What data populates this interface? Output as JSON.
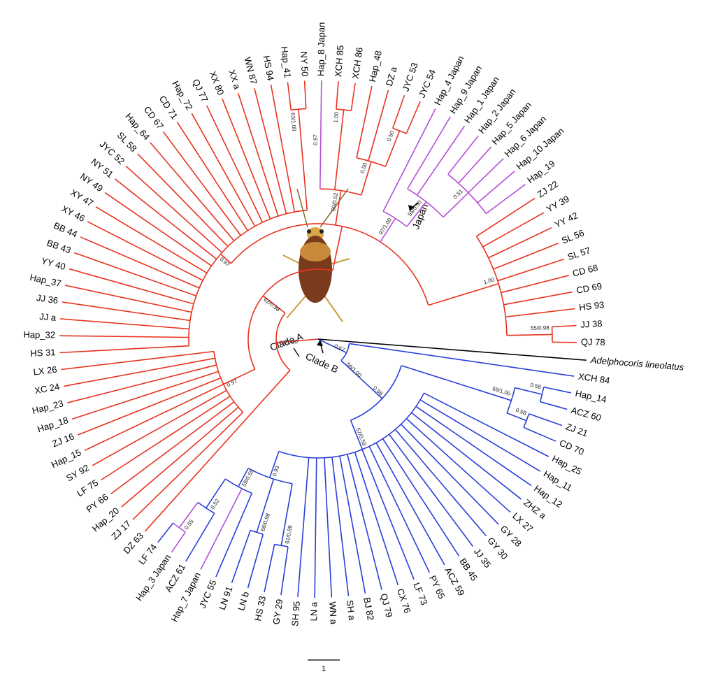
{
  "leaves": [
    {
      "label": "DZ 63",
      "color": "#e8321e"
    },
    {
      "label": "ZJ 17",
      "color": "#e8321e"
    },
    {
      "label": "Hap_20",
      "color": "#e8321e"
    },
    {
      "label": "PY 66",
      "color": "#e8321e"
    },
    {
      "label": "LF 75",
      "color": "#e8321e"
    },
    {
      "label": "SY 92",
      "color": "#e8321e"
    },
    {
      "label": "Hap_15",
      "color": "#e8321e"
    },
    {
      "label": "ZJ 16",
      "color": "#e8321e"
    },
    {
      "label": "Hap_18",
      "color": "#e8321e"
    },
    {
      "label": "Hap_23",
      "color": "#e8321e"
    },
    {
      "label": "XC 24",
      "color": "#e8321e"
    },
    {
      "label": "LX 26",
      "color": "#e8321e"
    },
    {
      "label": "HS 31",
      "color": "#e8321e"
    },
    {
      "label": "Hap_32",
      "color": "#e8321e"
    },
    {
      "label": "JJ a",
      "color": "#e8321e"
    },
    {
      "label": "JJ 36",
      "color": "#e8321e"
    },
    {
      "label": "Hap_37",
      "color": "#e8321e"
    },
    {
      "label": "YY 40",
      "color": "#e8321e"
    },
    {
      "label": "BB 43",
      "color": "#e8321e"
    },
    {
      "label": "BB 44",
      "color": "#e8321e"
    },
    {
      "label": "XY 46",
      "color": "#e8321e"
    },
    {
      "label": "XY 47",
      "color": "#e8321e"
    },
    {
      "label": "NY 49",
      "color": "#e8321e"
    },
    {
      "label": "NY 51",
      "color": "#e8321e"
    },
    {
      "label": "JYC 52",
      "color": "#e8321e"
    },
    {
      "label": "SL 58",
      "color": "#e8321e"
    },
    {
      "label": "Hap_64",
      "color": "#e8321e"
    },
    {
      "label": "CD 67",
      "color": "#e8321e"
    },
    {
      "label": "CD 71",
      "color": "#e8321e"
    },
    {
      "label": "Hap_72",
      "color": "#e8321e"
    },
    {
      "label": "QJ 77",
      "color": "#e8321e"
    },
    {
      "label": "XX 80",
      "color": "#e8321e"
    },
    {
      "label": "XX a",
      "color": "#e8321e"
    },
    {
      "label": "WN 87",
      "color": "#e8321e"
    },
    {
      "label": "HS 94",
      "color": "#e8321e"
    },
    {
      "label": "Hap_41",
      "color": "#e8321e"
    },
    {
      "label": "NY 50",
      "color": "#e8321e"
    },
    {
      "label": "Hap_8 Japan",
      "color": "#b44fd6",
      "support": "0.97"
    },
    {
      "label": "XCH 85",
      "color": "#e8321e"
    },
    {
      "label": "XCH 86",
      "color": "#e8321e"
    },
    {
      "label": "Hap_48",
      "color": "#e8321e"
    },
    {
      "label": "DZ a",
      "color": "#e8321e"
    },
    {
      "label": "JYC 53",
      "color": "#e8321e"
    },
    {
      "label": "JYC 54",
      "color": "#e8321e"
    },
    {
      "label": "Hap_4 Japan",
      "color": "#b44fd6"
    },
    {
      "label": "Hap_9 Japan",
      "color": "#b44fd6"
    },
    {
      "label": "Hap_1 Japan",
      "color": "#b44fd6"
    },
    {
      "label": "Hap_2 Japan",
      "color": "#b44fd6"
    },
    {
      "label": "Hap_5 Japan",
      "color": "#b44fd6"
    },
    {
      "label": "Hap_6 Japan",
      "color": "#b44fd6"
    },
    {
      "label": "Hap_10 Japan",
      "color": "#b44fd6"
    },
    {
      "label": "Hap_19",
      "color": "#b44fd6"
    },
    {
      "label": "ZJ 22",
      "color": "#e8321e"
    },
    {
      "label": "YY 39",
      "color": "#e8321e"
    },
    {
      "label": "YY 42",
      "color": "#e8321e"
    },
    {
      "label": "SL 56",
      "color": "#e8321e"
    },
    {
      "label": "SL 57",
      "color": "#e8321e"
    },
    {
      "label": "CD 68",
      "color": "#e8321e"
    },
    {
      "label": "CD 69",
      "color": "#e8321e"
    },
    {
      "label": "HS 93",
      "color": "#e8321e"
    },
    {
      "label": "JJ 38",
      "color": "#e8321e"
    },
    {
      "label": "QJ 78",
      "color": "#e8321e"
    },
    {
      "label": "Adelphocoris lineolatus",
      "color": "#000000"
    },
    {
      "label": "XCH 84",
      "color": "#2a3fd8"
    },
    {
      "label": "Hap_14",
      "color": "#2a3fd8"
    },
    {
      "label": "ACZ 60",
      "color": "#2a3fd8"
    },
    {
      "label": "ZJ 21",
      "color": "#2a3fd8"
    },
    {
      "label": "CD 70",
      "color": "#2a3fd8"
    },
    {
      "label": "Hap_25",
      "color": "#2a3fd8"
    },
    {
      "label": "Hap_11",
      "color": "#2a3fd8"
    },
    {
      "label": "Hap_12",
      "color": "#2a3fd8"
    },
    {
      "label": "ZHZ a",
      "color": "#2a3fd8"
    },
    {
      "label": "LX 27",
      "color": "#2a3fd8"
    },
    {
      "label": "GY 28",
      "color": "#2a3fd8"
    },
    {
      "label": "GY 30",
      "color": "#2a3fd8"
    },
    {
      "label": "JJ 35",
      "color": "#2a3fd8"
    },
    {
      "label": "BB 45",
      "color": "#2a3fd8"
    },
    {
      "label": "ACZ 59",
      "color": "#2a3fd8"
    },
    {
      "label": "PY 65",
      "color": "#2a3fd8"
    },
    {
      "label": "LF 73",
      "color": "#2a3fd8"
    },
    {
      "label": "CX 76",
      "color": "#2a3fd8"
    },
    {
      "label": "QJ 79",
      "color": "#2a3fd8"
    },
    {
      "label": "BJ 82",
      "color": "#2a3fd8"
    },
    {
      "label": "SH a",
      "color": "#2a3fd8"
    },
    {
      "label": "WN a",
      "color": "#2a3fd8"
    },
    {
      "label": "LN a",
      "color": "#2a3fd8"
    },
    {
      "label": "SH 95",
      "color": "#2a3fd8"
    },
    {
      "label": "GY 29",
      "color": "#2a3fd8"
    },
    {
      "label": "HS 33",
      "color": "#2a3fd8"
    },
    {
      "label": "LN b",
      "color": "#2a3fd8"
    },
    {
      "label": "LN 91",
      "color": "#2a3fd8"
    },
    {
      "label": "JYC 55",
      "color": "#2a3fd8"
    },
    {
      "label": "Hap_7 Japan",
      "color": "#b44fd6"
    },
    {
      "label": "ACZ 61",
      "color": "#2a3fd8"
    },
    {
      "label": "Hap_3 Japan",
      "color": "#b44fd6"
    },
    {
      "label": "LF 74",
      "color": "#2a3fd8"
    }
  ],
  "supports": [
    "79/1.00",
    "62/0.98",
    "0.97",
    "0.97",
    "60/0.52",
    "63/1.00",
    "1.00",
    "0.50",
    "0.50",
    "97/1.00",
    "55/0.50",
    "0.51",
    "1.00",
    "55/0.98",
    "0.67",
    "56/1.00",
    "0.96",
    "59/1.00",
    "0.58",
    "0.58",
    "57/0.59",
    "61/0.99",
    "68/0.98",
    "0.55",
    "0.52",
    "59/0.55",
    "0.93"
  ],
  "clade_a": "Clade A",
  "clade_b": "Clade B",
  "japan": "Japan",
  "scale_label": "1"
}
